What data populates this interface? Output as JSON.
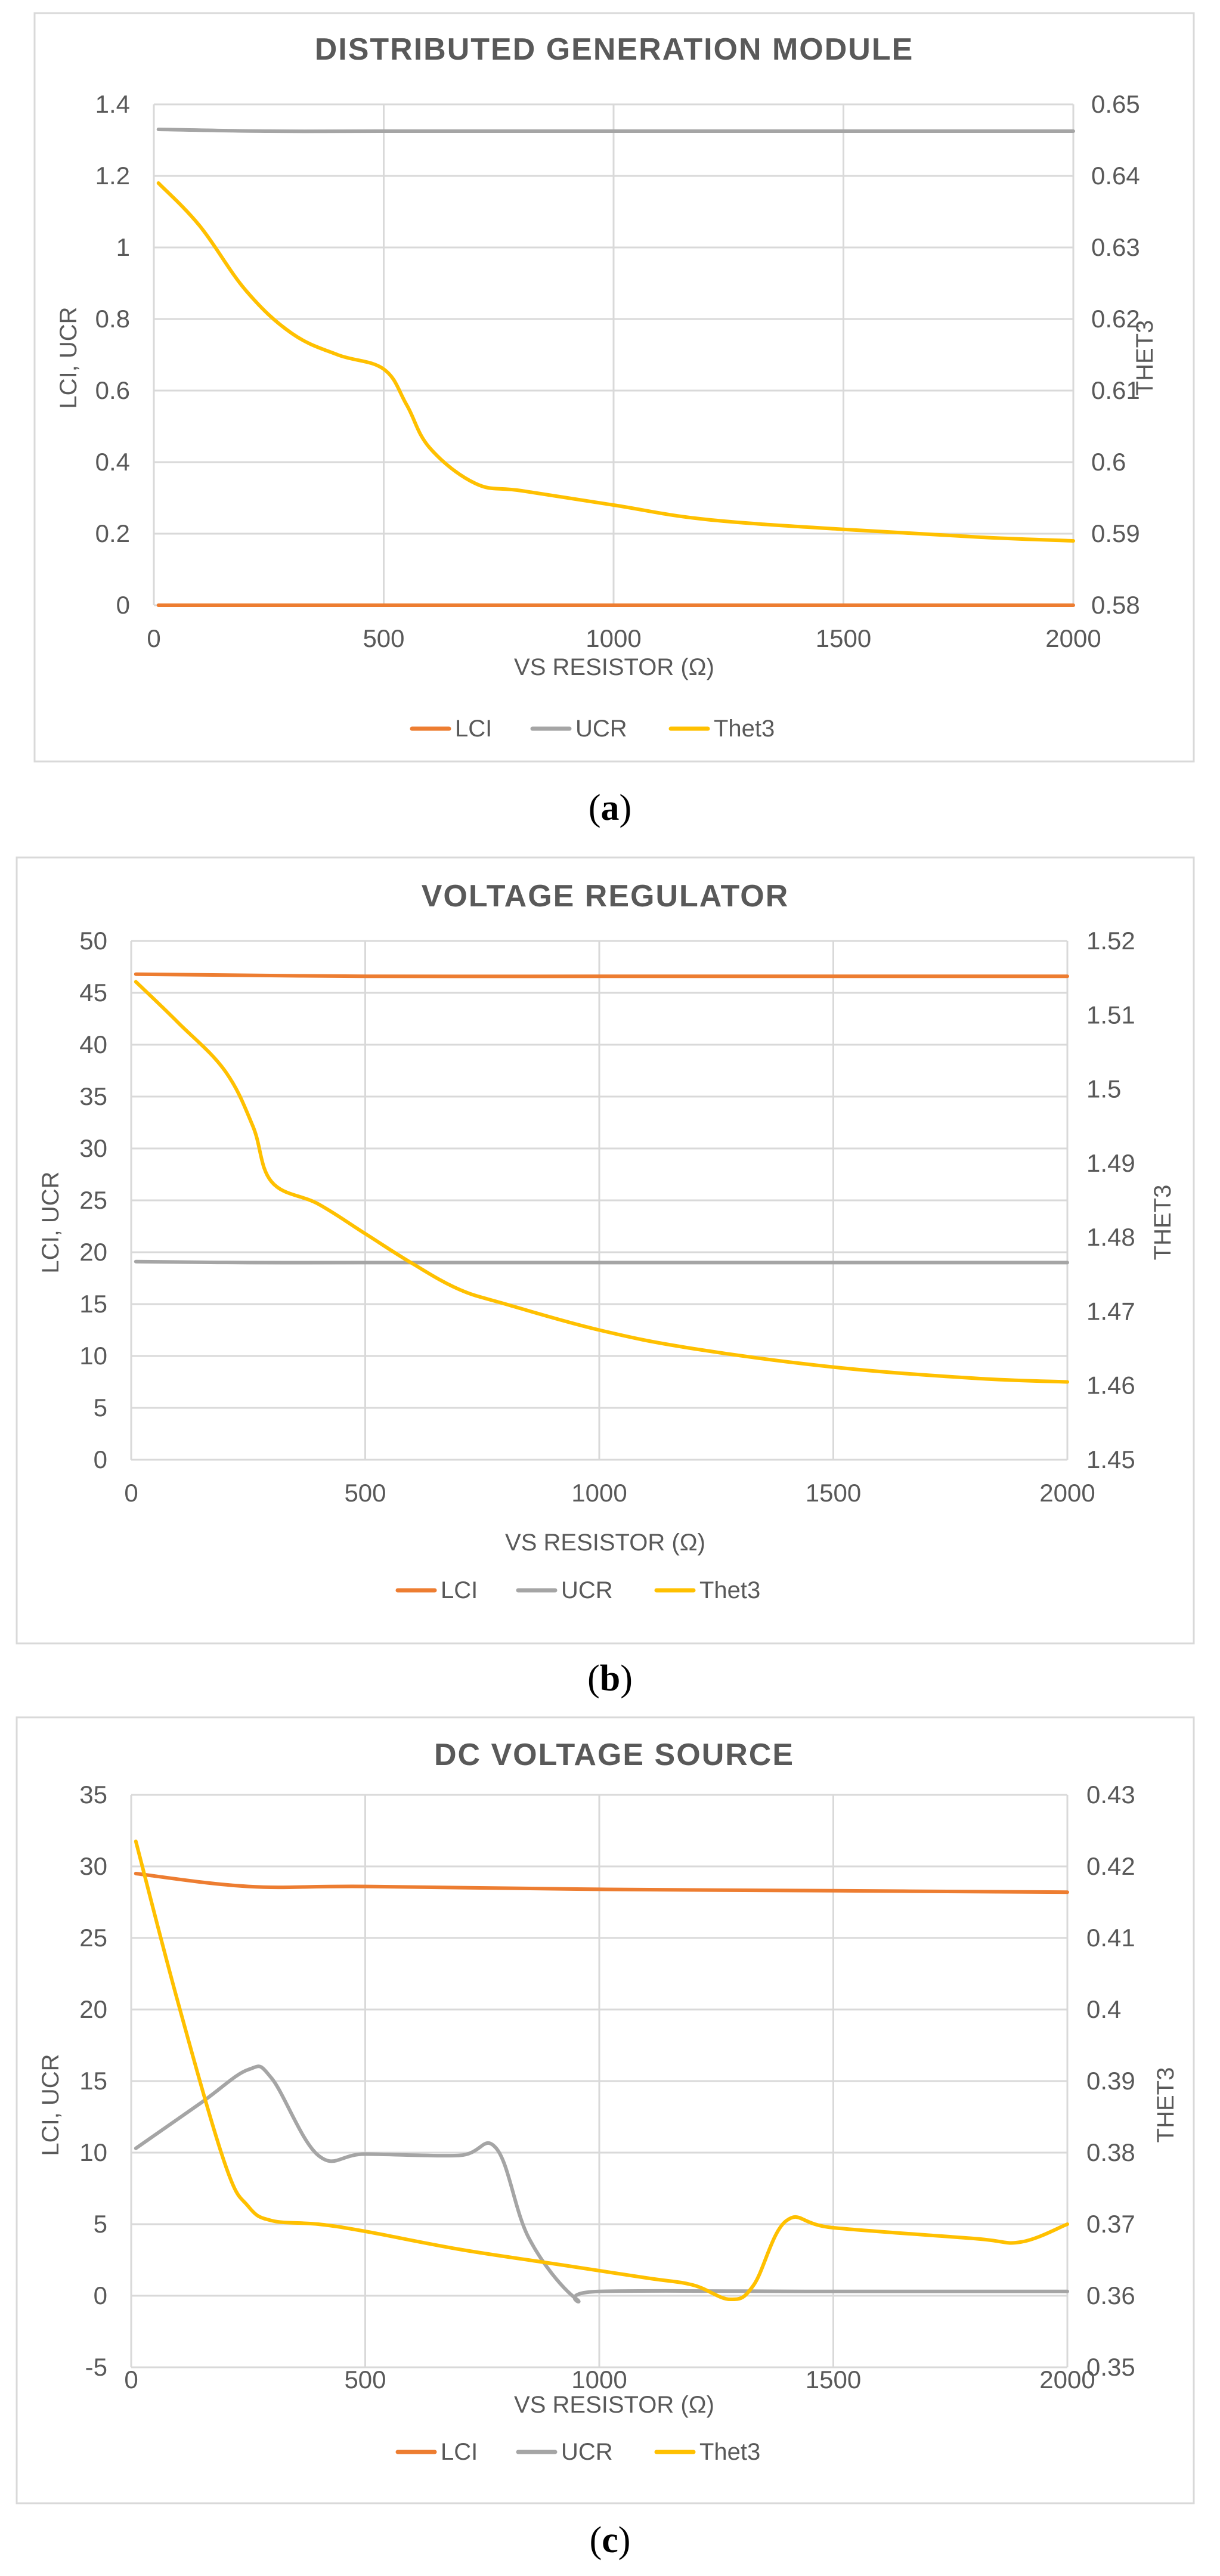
{
  "colors": {
    "LCI": "#ED7D31",
    "UCR": "#A5A5A5",
    "Thet3": "#FFC000"
  },
  "chart_data": [
    {
      "type": "line",
      "title": "DISTRIBUTED GENERATION MODULE",
      "caption": "a",
      "xlabel": "VS RESISTOR (Ω)",
      "ylabel_left": "LCI, UCR",
      "ylabel_right": "THET3",
      "xlim": [
        0,
        2000
      ],
      "ylim_left": [
        0,
        1.4
      ],
      "ylim_right": [
        0.58,
        0.65
      ],
      "xticks": [
        "0",
        "500",
        "1000",
        "1500",
        "2000"
      ],
      "yticks_left": [
        "0",
        "0.2",
        "0.4",
        "0.6",
        "0.8",
        "1",
        "1.2",
        "1.4"
      ],
      "yticks_right": [
        "0.58",
        "0.59",
        "0.6",
        "0.61",
        "0.62",
        "0.63",
        "0.64",
        "0.65"
      ],
      "legend": [
        "LCI",
        "UCR",
        "Thet3"
      ],
      "series": [
        {
          "name": "LCI",
          "axis": "left",
          "x": [
            10,
            500,
            1000,
            1500,
            2000
          ],
          "y": [
            0,
            0,
            0,
            0,
            0
          ]
        },
        {
          "name": "UCR",
          "axis": "left",
          "x": [
            10,
            250,
            500,
            1000,
            1500,
            2000
          ],
          "y": [
            1.33,
            1.325,
            1.325,
            1.325,
            1.325,
            1.325
          ]
        },
        {
          "name": "Thet3",
          "axis": "right",
          "x": [
            10,
            100,
            200,
            300,
            400,
            500,
            550,
            600,
            700,
            800,
            1000,
            1200,
            1500,
            1800,
            2000
          ],
          "y": [
            0.639,
            0.633,
            0.624,
            0.618,
            0.615,
            0.613,
            0.608,
            0.602,
            0.597,
            0.596,
            0.594,
            0.592,
            0.5906,
            0.5895,
            0.589
          ]
        }
      ]
    },
    {
      "type": "line",
      "title": "VOLTAGE REGULATOR",
      "caption": "b",
      "xlabel": "VS RESISTOR (Ω)",
      "ylabel_left": "LCI, UCR",
      "ylabel_right": "THET3",
      "xlim": [
        0,
        2000
      ],
      "ylim_left": [
        0,
        50
      ],
      "ylim_right": [
        1.45,
        1.52
      ],
      "xticks": [
        "0",
        "500",
        "1000",
        "1500",
        "2000"
      ],
      "yticks_left": [
        "0",
        "5",
        "10",
        "15",
        "20",
        "25",
        "30",
        "35",
        "40",
        "45",
        "50"
      ],
      "yticks_right": [
        "1.45",
        "1.46",
        "1.47",
        "1.48",
        "1.49",
        "1.5",
        "1.51",
        "1.52"
      ],
      "legend": [
        "LCI",
        "UCR",
        "Thet3"
      ],
      "series": [
        {
          "name": "LCI",
          "axis": "left",
          "x": [
            10,
            500,
            1000,
            1500,
            2000
          ],
          "y": [
            46.8,
            46.6,
            46.6,
            46.6,
            46.6
          ]
        },
        {
          "name": "UCR",
          "axis": "left",
          "x": [
            10,
            250,
            500,
            1000,
            1500,
            2000
          ],
          "y": [
            19.1,
            19.0,
            19.0,
            19.0,
            19.0,
            19.0
          ]
        },
        {
          "name": "Thet3",
          "axis": "right",
          "x": [
            10,
            100,
            200,
            260,
            300,
            400,
            500,
            600,
            700,
            800,
            1000,
            1200,
            1500,
            1800,
            2000
          ],
          "y": [
            1.5145,
            1.509,
            1.5025,
            1.495,
            1.4875,
            1.4845,
            1.4805,
            1.4765,
            1.473,
            1.471,
            1.4675,
            1.465,
            1.4625,
            1.461,
            1.4605
          ]
        }
      ]
    },
    {
      "type": "line",
      "title": "DC VOLTAGE SOURCE",
      "caption": "c",
      "xlabel": "VS RESISTOR (Ω)",
      "ylabel_left": "LCI, UCR",
      "ylabel_right": "THET3",
      "xlim": [
        0,
        2000
      ],
      "ylim_left": [
        -5,
        35
      ],
      "ylim_right": [
        0.35,
        0.43
      ],
      "xticks": [
        "0",
        "500",
        "1000",
        "1500",
        "2000"
      ],
      "yticks_left": [
        "-5",
        "0",
        "5",
        "10",
        "15",
        "20",
        "25",
        "30",
        "35"
      ],
      "yticks_right": [
        "0.35",
        "0.36",
        "0.37",
        "0.38",
        "0.39",
        "0.4",
        "0.41",
        "0.42",
        "0.43"
      ],
      "legend": [
        "LCI",
        "UCR",
        "Thet3"
      ],
      "series": [
        {
          "name": "LCI",
          "axis": "left",
          "x": [
            10,
            250,
            500,
            1000,
            1500,
            2000
          ],
          "y": [
            29.5,
            28.6,
            28.6,
            28.4,
            28.3,
            28.2
          ]
        },
        {
          "name": "UCR",
          "axis": "left",
          "x": [
            10,
            150,
            250,
            300,
            400,
            500,
            700,
            780,
            850,
            950,
            1000,
            1500,
            2000
          ],
          "y": [
            10.3,
            13.5,
            15.8,
            15.2,
            9.8,
            9.9,
            9.8,
            10.3,
            4.0,
            -0.2,
            0.3,
            0.3,
            0.3
          ]
        },
        {
          "name": "Thet3",
          "axis": "right",
          "x": [
            10,
            100,
            200,
            250,
            300,
            400,
            500,
            700,
            900,
            1100,
            1200,
            1280,
            1330,
            1400,
            1500,
            1800,
            1900,
            2000
          ],
          "y": [
            0.4235,
            0.401,
            0.3785,
            0.3725,
            0.3705,
            0.37,
            0.369,
            0.3665,
            0.3645,
            0.3625,
            0.3615,
            0.3595,
            0.3615,
            0.3705,
            0.3695,
            0.368,
            0.3675,
            0.37
          ]
        }
      ]
    }
  ]
}
